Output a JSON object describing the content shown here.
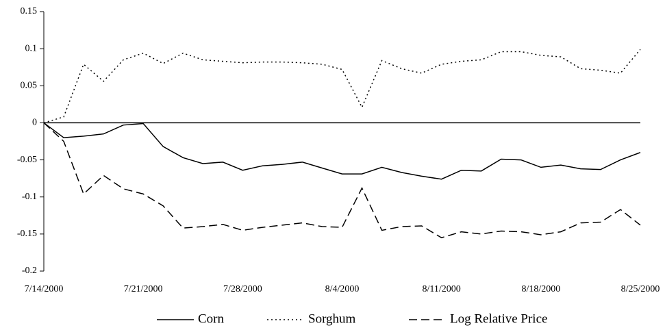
{
  "chart_data": {
    "type": "line",
    "categories": [
      "7/14/2000",
      null,
      null,
      null,
      null,
      "7/21/2000",
      null,
      null,
      null,
      null,
      "7/28/2000",
      null,
      null,
      null,
      null,
      "8/4/2000",
      null,
      null,
      null,
      null,
      "8/11/2000",
      null,
      null,
      null,
      null,
      "8/18/2000",
      null,
      null,
      null,
      null,
      "8/25/2000"
    ],
    "series": [
      {
        "name": "Corn",
        "color": "#000000",
        "style": "solid",
        "values": [
          0,
          -0.02,
          -0.018,
          -0.015,
          -0.003,
          -0.001,
          -0.032,
          -0.047,
          -0.055,
          -0.053,
          -0.064,
          -0.058,
          -0.056,
          -0.053,
          -0.061,
          -0.069,
          -0.069,
          -0.06,
          -0.067,
          -0.072,
          -0.076,
          -0.064,
          -0.065,
          -0.049,
          -0.05,
          -0.06,
          -0.057,
          -0.062,
          -0.063,
          -0.05,
          -0.04
        ]
      },
      {
        "name": "Sorghum",
        "color": "#000000",
        "style": "dotted",
        "values": [
          0,
          0.008,
          0.079,
          0.056,
          0.085,
          0.094,
          0.08,
          0.094,
          0.085,
          0.083,
          0.081,
          0.082,
          0.082,
          0.081,
          0.079,
          0.072,
          0.021,
          0.084,
          0.073,
          0.067,
          0.079,
          0.083,
          0.085,
          0.096,
          0.096,
          0.091,
          0.089,
          0.073,
          0.071,
          0.067,
          0.099
        ]
      },
      {
        "name": "Log Relative Price",
        "color": "#000000",
        "style": "dashed",
        "values": [
          0,
          -0.025,
          -0.096,
          -0.071,
          -0.089,
          -0.096,
          -0.112,
          -0.142,
          -0.14,
          -0.137,
          -0.145,
          -0.141,
          -0.138,
          -0.135,
          -0.14,
          -0.141,
          -0.088,
          -0.145,
          -0.14,
          -0.139,
          -0.155,
          -0.147,
          -0.15,
          -0.146,
          -0.147,
          -0.151,
          -0.147,
          -0.135,
          -0.134,
          -0.117,
          -0.138
        ]
      }
    ],
    "ylim": [
      -0.2,
      0.15
    ],
    "yticks": [
      0.15,
      0.1,
      0.05,
      0,
      -0.05,
      -0.1,
      -0.15,
      -0.2
    ],
    "legend": "bottom"
  }
}
